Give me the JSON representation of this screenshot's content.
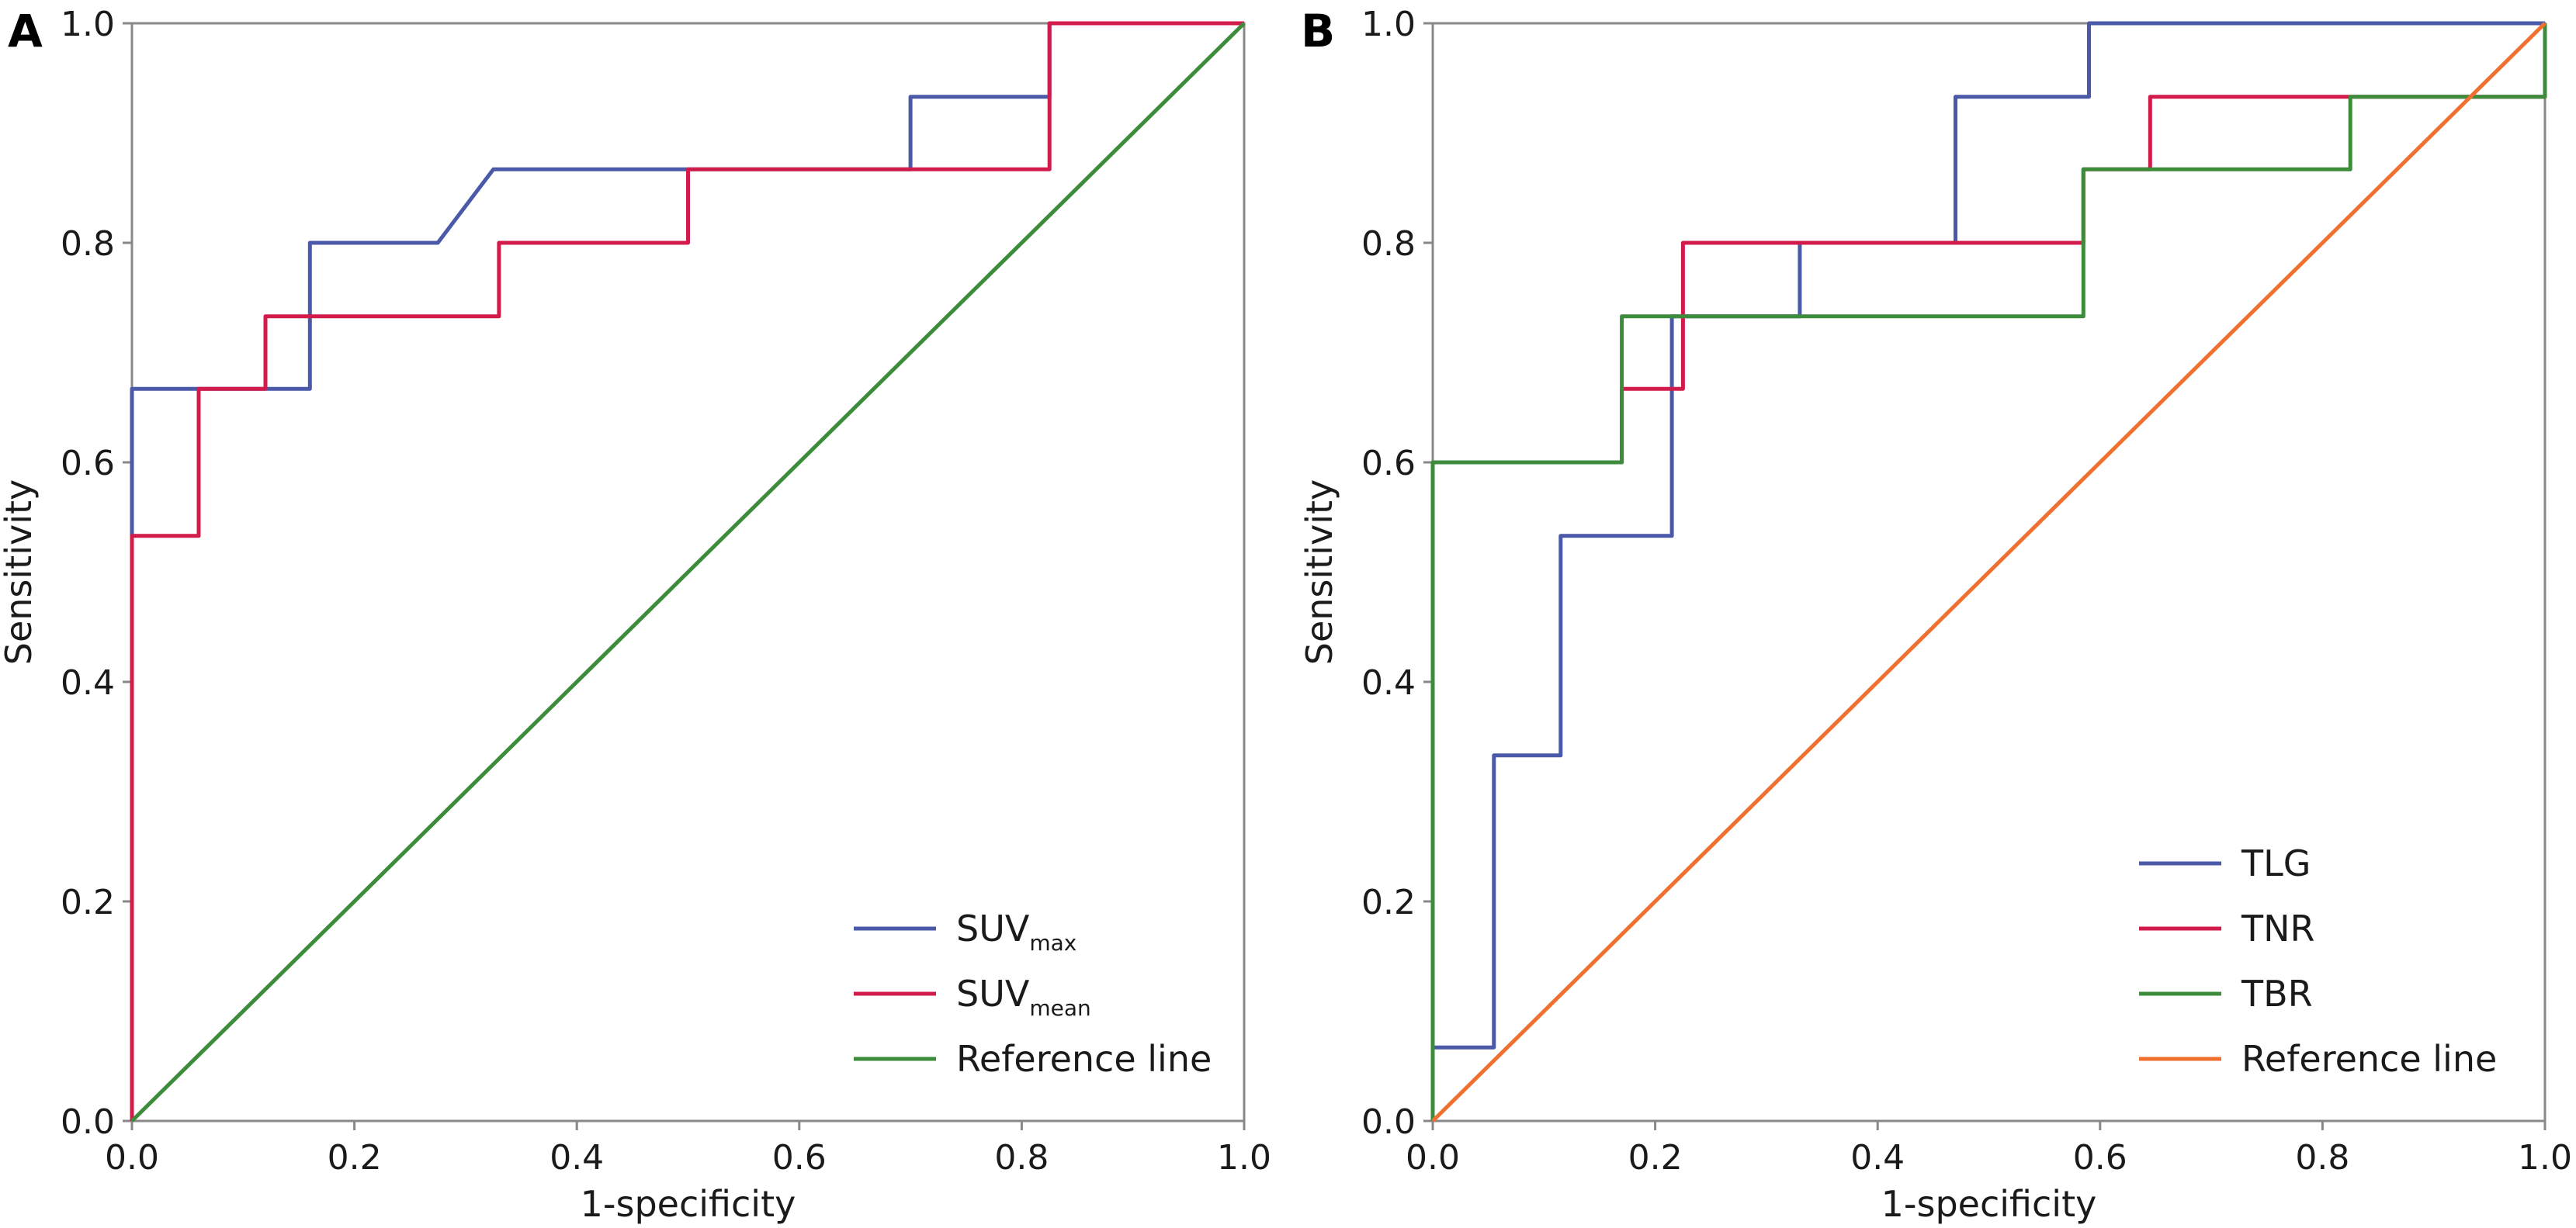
{
  "chart_data": [
    {
      "panel": "A",
      "type": "line",
      "xlabel": "1-specificity",
      "ylabel": "Sensitivity",
      "xlim": [
        0,
        1
      ],
      "ylim": [
        0,
        1
      ],
      "xticks": [
        "0.0",
        "0.2",
        "0.4",
        "0.6",
        "0.8",
        "1.0"
      ],
      "yticks": [
        "0.0",
        "0.2",
        "0.4",
        "0.6",
        "0.8",
        "1.0"
      ],
      "grid": false,
      "legend_position": "bottom-right",
      "series": [
        {
          "name": "SUV",
          "name_sub": "max",
          "color": "#4a5aa8",
          "points": [
            [
              0,
              0
            ],
            [
              0,
              0.667
            ],
            [
              0.16,
              0.667
            ],
            [
              0.16,
              0.8
            ],
            [
              0.275,
              0.8
            ],
            [
              0.325,
              0.867
            ],
            [
              0.7,
              0.867
            ],
            [
              0.7,
              0.933
            ],
            [
              0.825,
              0.933
            ],
            [
              0.825,
              1.0
            ],
            [
              1.0,
              1.0
            ]
          ]
        },
        {
          "name": "SUV",
          "name_sub": "mean",
          "color": "#d11b4a",
          "points": [
            [
              0,
              0
            ],
            [
              0,
              0.533
            ],
            [
              0.06,
              0.533
            ],
            [
              0.06,
              0.667
            ],
            [
              0.12,
              0.667
            ],
            [
              0.12,
              0.733
            ],
            [
              0.33,
              0.733
            ],
            [
              0.33,
              0.8
            ],
            [
              0.5,
              0.8
            ],
            [
              0.5,
              0.867
            ],
            [
              0.825,
              0.867
            ],
            [
              0.825,
              1.0
            ],
            [
              1.0,
              1.0
            ]
          ]
        },
        {
          "name": "Reference line",
          "name_sub": "",
          "color": "#3c8c3c",
          "points": [
            [
              0,
              0
            ],
            [
              1,
              1
            ]
          ]
        }
      ]
    },
    {
      "panel": "B",
      "type": "line",
      "xlabel": "1-specificity",
      "ylabel": "Sensitivity",
      "xlim": [
        0,
        1
      ],
      "ylim": [
        0,
        1
      ],
      "xticks": [
        "0.0",
        "0.2",
        "0.4",
        "0.6",
        "0.8",
        "1.0"
      ],
      "yticks": [
        "0.0",
        "0.2",
        "0.4",
        "0.6",
        "0.8",
        "1.0"
      ],
      "grid": false,
      "legend_position": "bottom-right",
      "series": [
        {
          "name": "TLG",
          "name_sub": "",
          "color": "#4a5aa8",
          "points": [
            [
              0,
              0
            ],
            [
              0,
              0.067
            ],
            [
              0.055,
              0.067
            ],
            [
              0.055,
              0.333
            ],
            [
              0.115,
              0.333
            ],
            [
              0.115,
              0.533
            ],
            [
              0.215,
              0.533
            ],
            [
              0.215,
              0.733
            ],
            [
              0.33,
              0.733
            ],
            [
              0.33,
              0.8
            ],
            [
              0.47,
              0.8
            ],
            [
              0.47,
              0.933
            ],
            [
              0.59,
              0.933
            ],
            [
              0.59,
              1.0
            ],
            [
              1.0,
              1.0
            ]
          ]
        },
        {
          "name": "TNR",
          "name_sub": "",
          "color": "#d11b4a",
          "points": [
            [
              0,
              0
            ],
            [
              0,
              0.6
            ],
            [
              0.17,
              0.6
            ],
            [
              0.17,
              0.667
            ],
            [
              0.225,
              0.667
            ],
            [
              0.225,
              0.8
            ],
            [
              0.585,
              0.8
            ],
            [
              0.585,
              0.867
            ],
            [
              0.645,
              0.867
            ],
            [
              0.645,
              0.933
            ],
            [
              1.0,
              0.933
            ],
            [
              1.0,
              1.0
            ]
          ]
        },
        {
          "name": "TBR",
          "name_sub": "",
          "color": "#3c8c3c",
          "points": [
            [
              0,
              0
            ],
            [
              0,
              0.6
            ],
            [
              0.17,
              0.6
            ],
            [
              0.17,
              0.733
            ],
            [
              0.585,
              0.733
            ],
            [
              0.585,
              0.867
            ],
            [
              0.825,
              0.867
            ],
            [
              0.825,
              0.933
            ],
            [
              1.0,
              0.933
            ],
            [
              1.0,
              1.0
            ]
          ]
        },
        {
          "name": "Reference line",
          "name_sub": "",
          "color": "#f07030",
          "points": [
            [
              0,
              0
            ],
            [
              1,
              1
            ]
          ]
        }
      ]
    }
  ]
}
